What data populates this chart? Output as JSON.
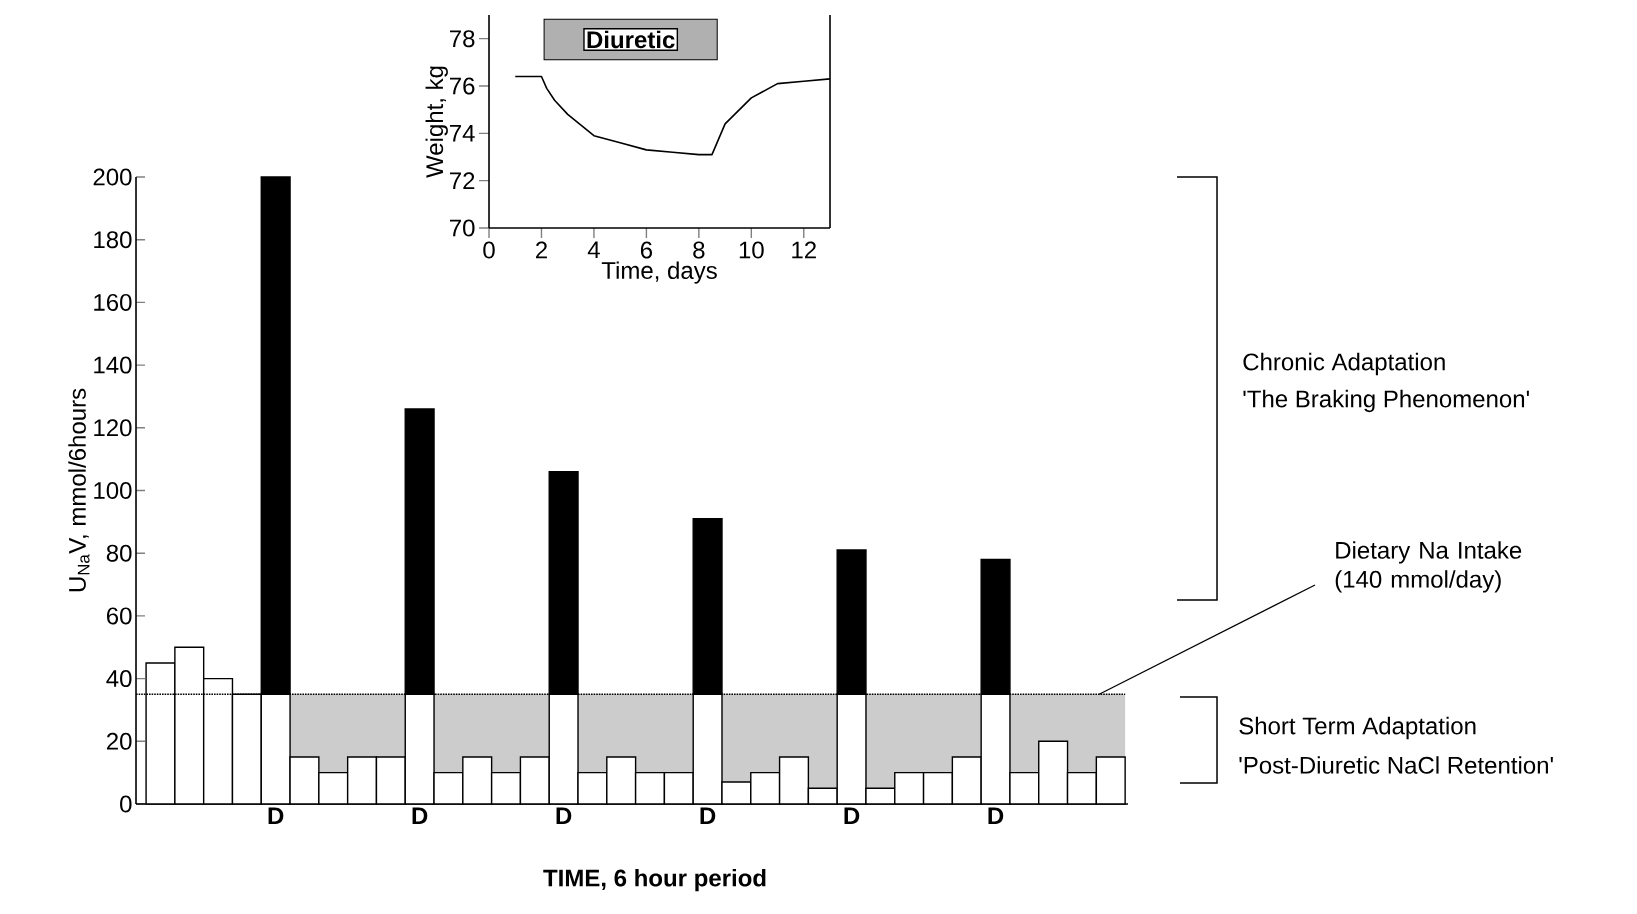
{
  "chart_data": [
    {
      "type": "bar",
      "xlabel": "TIME, 6 hour period",
      "ylabel": "U$_{Na}$V, mmol/6hours",
      "categories": [
        null,
        null,
        null,
        null,
        "D",
        null,
        null,
        null,
        null,
        "D",
        null,
        null,
        null,
        null,
        "D",
        null,
        null,
        null,
        null,
        "D",
        null,
        null,
        null,
        null,
        "D",
        null,
        null,
        null,
        null,
        "D",
        null,
        null,
        null,
        null
      ],
      "stacked": true,
      "series": [
        {
          "color": "#ffffff",
          "values": [
            45,
            50,
            40,
            35,
            35,
            15,
            10,
            15,
            15,
            35,
            10,
            15,
            10,
            15,
            35,
            10,
            15,
            10,
            10,
            35,
            7,
            10,
            15,
            5,
            35,
            5,
            10,
            10,
            15,
            35,
            10,
            20,
            10,
            15
          ]
        },
        {
          "color": "#000000",
          "values": [
            null,
            null,
            null,
            null,
            165,
            null,
            null,
            null,
            null,
            91,
            null,
            null,
            null,
            null,
            71,
            null,
            null,
            null,
            null,
            56,
            null,
            null,
            null,
            null,
            46,
            null,
            null,
            null,
            null,
            43,
            null,
            null,
            null,
            null
          ]
        }
      ],
      "ylim": [
        0,
        200
      ],
      "yticks": [
        0,
        20,
        40,
        60,
        80,
        100,
        120,
        140,
        160,
        180,
        200
      ],
      "ref_lines": [
        {
          "axis": "y",
          "value": 35,
          "label": "Dietary Na Intake (140 mmol/day)",
          "line_style": "dotted"
        }
      ],
      "bands": [
        {
          "axis": "y",
          "from": 0,
          "to": 35,
          "color": "#cccccc"
        }
      ],
      "annotations": [
        "Chronic Adaptation",
        "'The Braking Phenomenon'",
        "Short Term Adaptation",
        "'Post-Diuretic NaCl Retention'"
      ]
    },
    {
      "type": "line",
      "xlabel": "Time, days",
      "ylabel": "Weight, kg",
      "x": [
        1,
        2,
        2.2,
        2.5,
        3,
        4,
        5,
        6,
        7,
        8,
        8.5,
        9,
        10,
        11,
        12,
        13
      ],
      "series": [
        {
          "color": "#000000",
          "values": [
            76.4,
            76.4,
            75.9,
            75.4,
            74.8,
            73.9,
            73.6,
            73.3,
            73.2,
            73.1,
            73.1,
            74.4,
            75.5,
            76.1,
            76.2,
            76.3
          ]
        }
      ],
      "xlim": [
        0,
        13
      ],
      "ylim": [
        70,
        79
      ],
      "xticks": [
        0,
        2,
        4,
        6,
        8,
        10,
        12
      ],
      "yticks": [
        70,
        72,
        74,
        76,
        78
      ],
      "bands": [
        {
          "axis": "x",
          "from": 2.1,
          "to": 8.7,
          "label": "Diuretic",
          "color": "#b0b0b0"
        }
      ],
      "marker": "none"
    }
  ]
}
